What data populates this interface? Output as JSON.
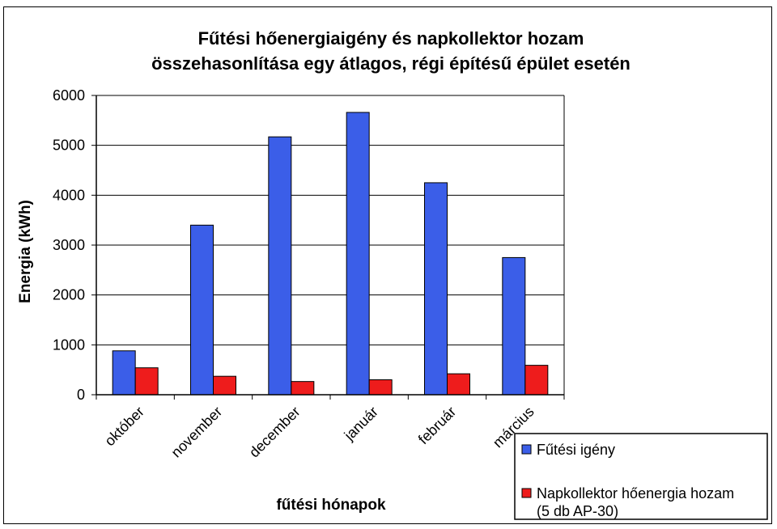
{
  "chart_data": {
    "type": "bar",
    "title_lines": [
      "Fűtési hőenergiaigény és napkollektor hozam",
      "összehasonlítása egy átlagos, régi építésű épület esetén"
    ],
    "xlabel": "fűtési hónapok",
    "ylabel": "Energia (kWh)",
    "ylim": [
      0,
      6000
    ],
    "yticks": [
      "0",
      "1000",
      "2000",
      "3000",
      "4000",
      "5000",
      "6000"
    ],
    "categories": [
      "október",
      "november",
      "december",
      "január",
      "február",
      "március"
    ],
    "series": [
      {
        "name": "Fűtési igény",
        "color": "#3b5ee8",
        "values": [
          880,
          3400,
          5170,
          5660,
          4250,
          2750
        ]
      },
      {
        "name_lines": [
          "Napkollektor hőenergia hozam",
          "(5 db AP-30)"
        ],
        "color": "#ee1c1c",
        "values": [
          540,
          370,
          265,
          300,
          420,
          590
        ]
      }
    ],
    "grid": true,
    "legend_position": "bottom-right"
  }
}
